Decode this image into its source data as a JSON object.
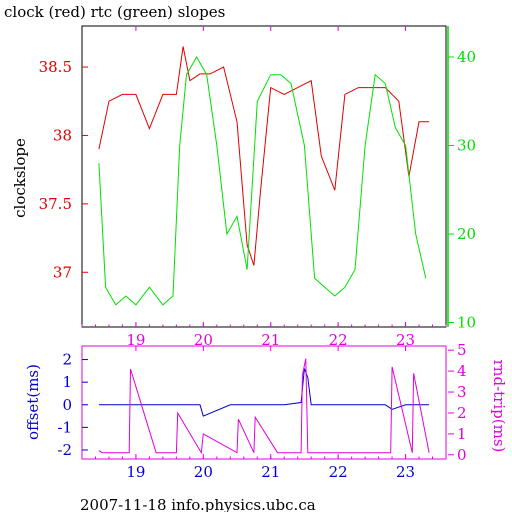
{
  "footer": "2007-11-18 info.physics.ubc.ca",
  "colors": {
    "clock": "#e00000",
    "rtc": "#00e000",
    "offset": "#0000cc",
    "roundtrip": "#e000e0",
    "axis": "#000000"
  },
  "chart_data": [
    {
      "type": "line",
      "title": "clock (red) rtc (green) slopes",
      "ylabel": "clockslope",
      "y2label": "",
      "xlim": [
        18.2,
        23.6
      ],
      "ylim": [
        36.6,
        38.8
      ],
      "y2lim": [
        9.5,
        43.5
      ],
      "x_ticks": [
        "19",
        "20",
        "21",
        "22",
        "23"
      ],
      "x_tick_values": [
        19,
        20,
        21,
        22,
        23
      ],
      "y_ticks": [
        "37",
        "37.5",
        "38",
        "38.5"
      ],
      "y_tick_values": [
        37,
        37.5,
        38,
        38.5
      ],
      "y2_ticks": [
        "10",
        "20",
        "30",
        "40"
      ],
      "y2_tick_values": [
        10,
        20,
        30,
        40
      ],
      "series": [
        {
          "axis": "left",
          "color_key": "clock",
          "x": [
            18.45,
            18.6,
            18.8,
            19.0,
            19.2,
            19.4,
            19.6,
            19.7,
            19.8,
            19.95,
            20.1,
            20.3,
            20.5,
            20.65,
            20.75,
            20.85,
            21.0,
            21.2,
            21.4,
            21.6,
            21.75,
            21.95,
            22.1,
            22.3,
            22.5,
            22.7,
            22.9,
            23.05,
            23.2,
            23.35
          ],
          "y": [
            37.9,
            38.25,
            38.3,
            38.3,
            38.05,
            38.3,
            38.3,
            38.65,
            38.4,
            38.45,
            38.45,
            38.5,
            38.1,
            37.2,
            37.05,
            37.6,
            38.35,
            38.3,
            38.35,
            38.4,
            37.85,
            37.6,
            38.3,
            38.35,
            38.35,
            38.35,
            38.25,
            37.7,
            38.1,
            38.1
          ]
        },
        {
          "axis": "right",
          "color_key": "rtc",
          "x": [
            18.45,
            18.55,
            18.7,
            18.85,
            19.0,
            19.2,
            19.4,
            19.55,
            19.65,
            19.75,
            19.9,
            20.05,
            20.2,
            20.35,
            20.5,
            20.65,
            20.8,
            21.0,
            21.15,
            21.3,
            21.5,
            21.65,
            21.8,
            21.95,
            22.1,
            22.25,
            22.4,
            22.55,
            22.7,
            22.85,
            23.0,
            23.15,
            23.3
          ],
          "y": [
            28,
            14,
            12,
            13,
            12,
            14,
            12,
            13,
            30,
            38,
            40,
            38,
            30,
            20,
            22,
            16,
            35,
            38,
            38,
            37,
            30,
            15,
            14,
            13,
            14,
            16,
            30,
            38,
            37,
            32,
            30,
            20,
            15
          ]
        }
      ]
    },
    {
      "type": "line",
      "title": "",
      "ylabel": "offset(ms)",
      "y2label": "rnd-trip(ms)",
      "xlim": [
        18.2,
        23.6
      ],
      "ylim": [
        -2.4,
        2.6
      ],
      "y2lim": [
        -0.2,
        5.2
      ],
      "x_ticks": [
        "19",
        "20",
        "21",
        "22",
        "23"
      ],
      "x_tick_values": [
        19,
        20,
        21,
        22,
        23
      ],
      "y_ticks": [
        "-2",
        "-1",
        "0",
        "1",
        "2"
      ],
      "y_tick_values": [
        -2,
        -1,
        0,
        1,
        2
      ],
      "y2_ticks": [
        "0",
        "1",
        "2",
        "3",
        "4",
        "5"
      ],
      "y2_tick_values": [
        0,
        1,
        2,
        3,
        4,
        5
      ],
      "series": [
        {
          "axis": "left",
          "color_key": "offset",
          "x": [
            18.45,
            18.8,
            19.2,
            19.6,
            19.95,
            20.0,
            20.4,
            20.8,
            21.2,
            21.45,
            21.5,
            21.55,
            21.6,
            21.9,
            22.3,
            22.7,
            22.8,
            23.0,
            23.35
          ],
          "y": [
            0.0,
            0.0,
            0.0,
            0.0,
            0.0,
            -0.5,
            0.0,
            0.0,
            0.0,
            0.1,
            1.6,
            1.2,
            0.0,
            0.0,
            0.0,
            0.0,
            -0.2,
            0.0,
            0.0
          ]
        },
        {
          "axis": "right",
          "color_key": "roundtrip",
          "x": [
            18.45,
            18.5,
            18.9,
            18.92,
            19.3,
            19.6,
            19.62,
            19.97,
            20.0,
            20.5,
            20.52,
            20.75,
            20.77,
            21.1,
            21.45,
            21.47,
            21.52,
            21.55,
            22.0,
            22.4,
            22.78,
            22.8,
            23.1,
            23.12,
            23.35
          ],
          "y": [
            0.2,
            0.1,
            0.1,
            4.1,
            0.1,
            0.1,
            2.0,
            0.1,
            1.0,
            0.1,
            1.7,
            0.1,
            1.8,
            0.1,
            0.1,
            3.8,
            4.6,
            0.1,
            0.1,
            0.1,
            0.1,
            4.2,
            0.1,
            3.9,
            0.1
          ]
        }
      ]
    }
  ]
}
